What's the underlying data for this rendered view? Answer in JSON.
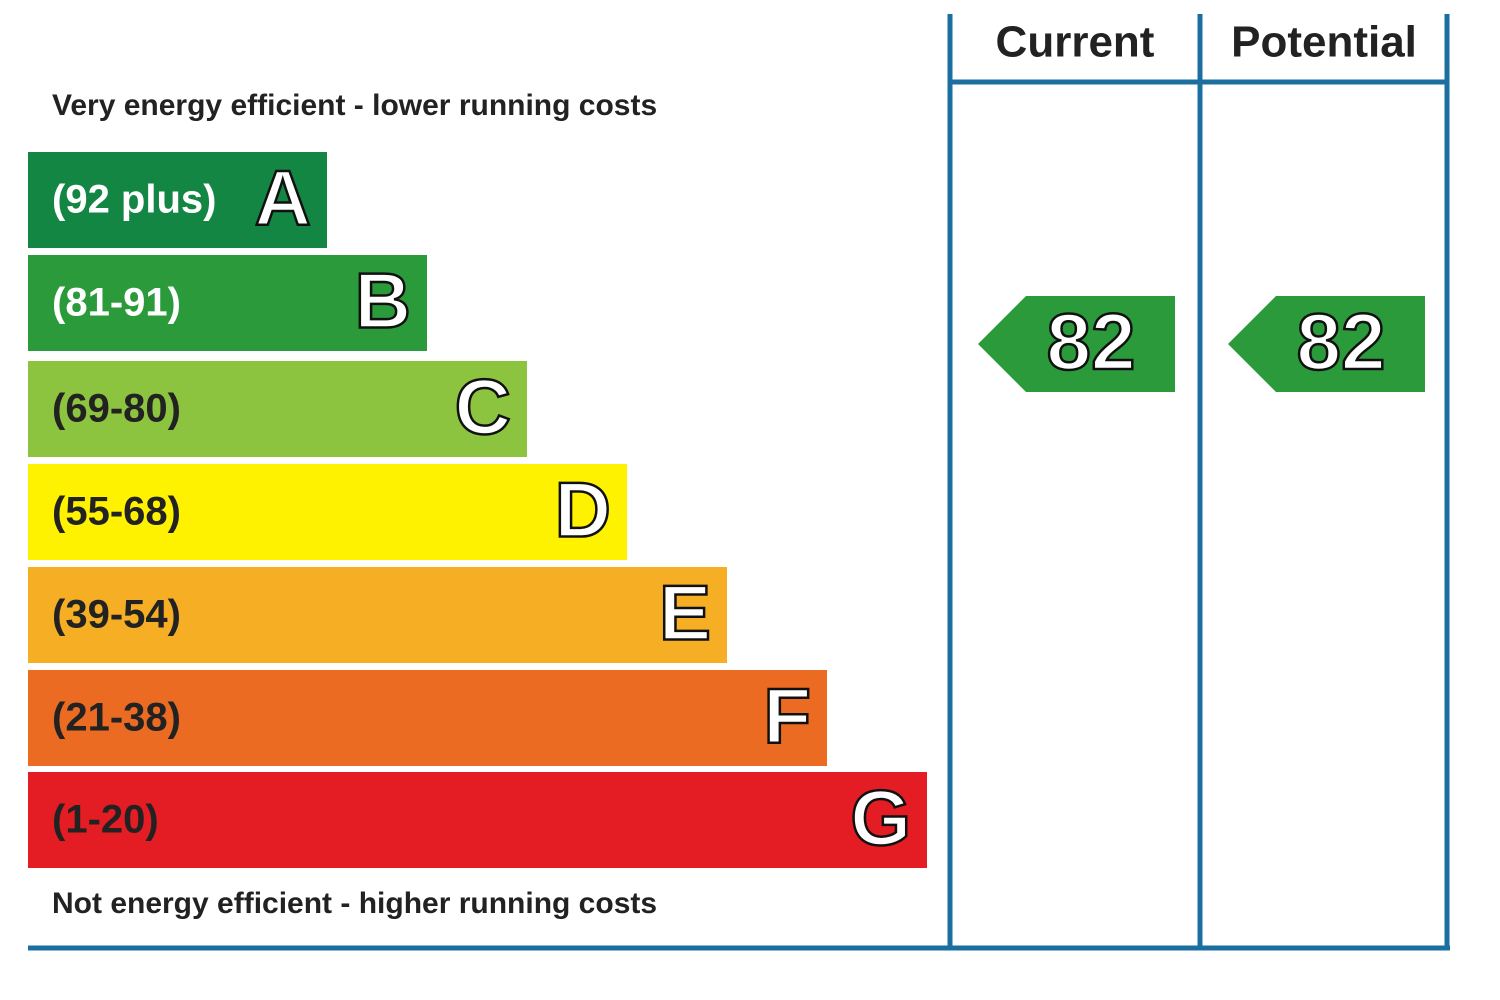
{
  "header": {
    "current": "Current",
    "potential": "Potential"
  },
  "top_note": "Very energy efficient - lower running costs",
  "bottom_note": "Not energy efficient - higher running costs",
  "bands": [
    {
      "range": "(92 plus)",
      "letter": "A",
      "color": "#138644",
      "text_color": "#ffffff"
    },
    {
      "range": "(81-91)",
      "letter": "B",
      "color": "#2a9a3a",
      "text_color": "#ffffff"
    },
    {
      "range": "(69-80)",
      "letter": "C",
      "color": "#8cc43f",
      "text_color": "#222222"
    },
    {
      "range": "(55-68)",
      "letter": "D",
      "color": "#fff200",
      "text_color": "#222222"
    },
    {
      "range": "(39-54)",
      "letter": "E",
      "color": "#f6ae25",
      "text_color": "#222222"
    },
    {
      "range": "(21-38)",
      "letter": "F",
      "color": "#ec6b23",
      "text_color": "#222222"
    },
    {
      "range": "(1-20)",
      "letter": "G",
      "color": "#e31d23",
      "text_color": "#222222"
    }
  ],
  "current": {
    "value": 82,
    "color": "#2a9a3a"
  },
  "potential": {
    "value": 82,
    "color": "#2a9a3a"
  }
}
